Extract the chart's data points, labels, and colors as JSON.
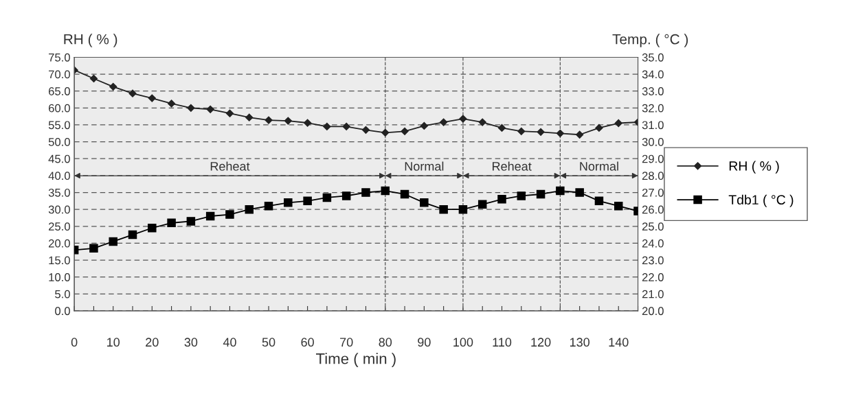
{
  "chart_data": {
    "type": "line",
    "xlabel": "Time ( min )",
    "ylabel": "RH ( % )",
    "y2label": "Temp. ( °C )",
    "x": [
      0,
      5,
      10,
      15,
      20,
      25,
      30,
      35,
      40,
      45,
      50,
      55,
      60,
      65,
      70,
      75,
      80,
      85,
      90,
      95,
      100,
      105,
      110,
      115,
      120,
      125,
      130,
      135,
      140,
      145
    ],
    "series": [
      {
        "name": "RH ( % )",
        "color": "#222222",
        "marker": "diamond",
        "values": [
          71.2,
          68.7,
          66.3,
          64.3,
          62.9,
          61.3,
          60.0,
          59.6,
          58.4,
          57.2,
          56.4,
          56.2,
          55.6,
          54.5,
          54.5,
          53.5,
          52.7,
          53.1,
          54.7,
          55.8,
          56.8,
          55.8,
          54.1,
          53.1,
          52.9,
          52.5,
          52.1,
          54.1,
          55.5,
          55.8
        ]
      },
      {
        "name": "Tdb1 ( °C )",
        "color": "#000000",
        "marker": "square",
        "axis": "y2",
        "values": [
          23.6,
          23.7,
          24.1,
          24.5,
          24.9,
          25.2,
          25.3,
          25.6,
          25.7,
          26.0,
          26.2,
          26.4,
          26.5,
          26.7,
          26.8,
          27.0,
          27.1,
          26.9,
          26.4,
          26.0,
          26.0,
          26.3,
          26.6,
          26.8,
          26.9,
          27.1,
          27.0,
          26.5,
          26.2,
          25.9
        ]
      }
    ],
    "xlim": [
      0,
      145
    ],
    "xticks": [
      0,
      {
        "value": 5,
        "label": null
      },
      10,
      {
        "value": 15,
        "label": null
      },
      20,
      {
        "value": 25,
        "label": null
      },
      30,
      {
        "value": 35,
        "label": null
      },
      40,
      {
        "value": 45,
        "label": null
      },
      50,
      {
        "value": 55,
        "label": null
      },
      60,
      {
        "value": 65,
        "label": null
      },
      70,
      {
        "value": 75,
        "label": null
      },
      80,
      {
        "value": 85,
        "label": null
      },
      90,
      {
        "value": 95,
        "label": null
      },
      100,
      {
        "value": 105,
        "label": null
      },
      110,
      {
        "value": 115,
        "label": null
      },
      120,
      {
        "value": 125,
        "label": null
      },
      130,
      {
        "value": 135,
        "label": null
      },
      140,
      {
        "value": 145,
        "label": null
      }
    ],
    "ylim": [
      0,
      75
    ],
    "yticks": [
      {
        "value": 0,
        "label": "0.0"
      },
      {
        "value": 5,
        "label": "5.0"
      },
      {
        "value": 10,
        "label": "10.0"
      },
      {
        "value": 15,
        "label": "15.0"
      },
      {
        "value": 20,
        "label": "20.0"
      },
      {
        "value": 25,
        "label": "25.0"
      },
      {
        "value": 30,
        "label": "30.0"
      },
      {
        "value": 35,
        "label": "35.0"
      },
      {
        "value": 40,
        "label": "40.0"
      },
      {
        "value": 45,
        "label": "45.0"
      },
      {
        "value": 50,
        "label": "50.0"
      },
      {
        "value": 55,
        "label": "55.0"
      },
      {
        "value": 60,
        "label": "60.0"
      },
      {
        "value": 65,
        "label": "65.0"
      },
      {
        "value": 70,
        "label": "70.0"
      },
      {
        "value": 75,
        "label": "75.0"
      }
    ],
    "y2lim": [
      20,
      35
    ],
    "y2ticks": [
      {
        "value": 20,
        "label": "20.0"
      },
      {
        "value": 21,
        "label": "21.0"
      },
      {
        "value": 22,
        "label": "22.0"
      },
      {
        "value": 23,
        "label": "23.0"
      },
      {
        "value": 24,
        "label": "24.0"
      },
      {
        "value": 25,
        "label": "25.0"
      },
      {
        "value": 26,
        "label": "26.0"
      },
      {
        "value": 27,
        "label": "27.0"
      },
      {
        "value": 28,
        "label": "28.0"
      },
      {
        "value": 29,
        "label": "29.0"
      },
      {
        "value": 30,
        "label": "30.0"
      },
      {
        "value": 31,
        "label": "31.0"
      },
      {
        "value": 32,
        "label": "32.0"
      },
      {
        "value": 33,
        "label": "33.0"
      },
      {
        "value": 34,
        "label": "34.0"
      },
      {
        "value": 35,
        "label": "35.0"
      }
    ],
    "ref_lines": [
      {
        "axis": "x",
        "value": 80,
        "line_style": "dashed",
        "color": "#555555"
      },
      {
        "axis": "x",
        "value": 100,
        "line_style": "dashed",
        "color": "#555555"
      },
      {
        "axis": "x",
        "value": 125,
        "line_style": "dashed",
        "color": "#555555"
      }
    ],
    "annotations": [
      "Reheat",
      "Normal",
      "Reheat",
      "Normal"
    ],
    "grid": "y",
    "legend": "right",
    "line_style": "solid"
  }
}
